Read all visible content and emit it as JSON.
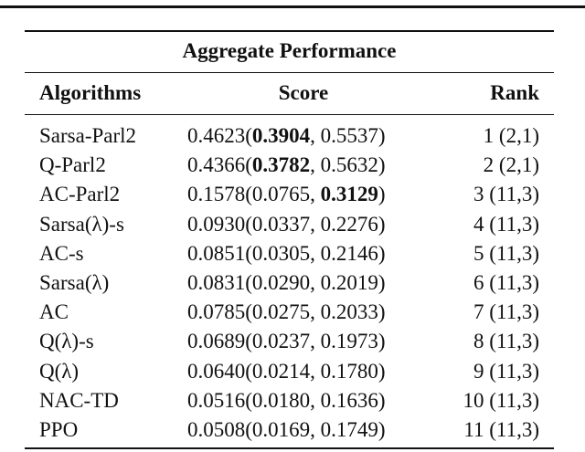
{
  "table": {
    "title": "Aggregate Performance",
    "header": [
      "Algorithms",
      "Score",
      "Rank"
    ],
    "rows": [
      [
        "Sarsa-Parl2",
        {
          "parts": [
            "0.4623(",
            "0.3904",
            ", 0.5537)"
          ],
          "bold": 1
        },
        "1 (2,1)"
      ],
      [
        "Q-Parl2",
        {
          "parts": [
            "0.4366(",
            "0.3782",
            ", 0.5632)"
          ],
          "bold": 1
        },
        "2 (2,1)"
      ],
      [
        "AC-Parl2",
        {
          "parts": [
            "0.1578(0.0765, ",
            "0.3129",
            ")"
          ],
          "bold": 1
        },
        "3 (11,3)"
      ],
      [
        "Sarsa(λ)-s",
        {
          "parts": [
            "0.0930(0.0337, 0.2276)"
          ]
        },
        "4 (11,3)"
      ],
      [
        "AC-s",
        {
          "parts": [
            "0.0851(0.0305, 0.2146)"
          ]
        },
        "5 (11,3)"
      ],
      [
        "Sarsa(λ)",
        {
          "parts": [
            "0.0831(0.0290, 0.2019)"
          ]
        },
        "6 (11,3)"
      ],
      [
        "AC",
        {
          "parts": [
            "0.0785(0.0275, 0.2033)"
          ]
        },
        "7 (11,3)"
      ],
      [
        "Q(λ)-s",
        {
          "parts": [
            "0.0689(0.0237, 0.1973)"
          ]
        },
        "8 (11,3)"
      ],
      [
        "Q(λ)",
        {
          "parts": [
            "0.0640(0.0214, 0.1780)"
          ]
        },
        "9 (11,3)"
      ],
      [
        "NAC-TD",
        {
          "parts": [
            "0.0516(0.0180, 0.1636)"
          ]
        },
        "10 (11,3)"
      ],
      [
        "PPO",
        {
          "parts": [
            "0.0508(0.0169, 0.1749)"
          ]
        },
        "11 (11,3)"
      ]
    ]
  }
}
